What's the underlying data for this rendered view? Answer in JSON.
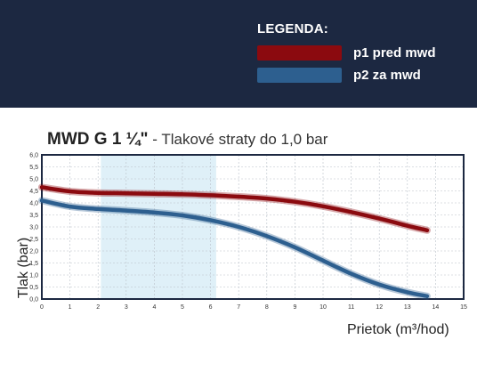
{
  "legend": {
    "title": "LEGENDA:",
    "items": [
      {
        "label": "p1 pred mwd",
        "color": "#8b0a0f"
      },
      {
        "label": "p2 za mwd",
        "color": "#2d5f8f"
      }
    ]
  },
  "header": {
    "title_strong": "MWD G 1 ¼\"",
    "title_rest": " - Tlakové straty do 1,0 bar"
  },
  "chart_data": {
    "type": "line",
    "xlabel": "Prietok (m³/hod)",
    "ylabel": "Tlak (bar)",
    "xlim": [
      0,
      15
    ],
    "ylim": [
      0,
      6
    ],
    "xticks": [
      "0",
      "1",
      "2",
      "3",
      "4",
      "5",
      "6",
      "7",
      "8",
      "9",
      "10",
      "11",
      "12",
      "13",
      "14",
      "15"
    ],
    "yticks": [
      "0,0",
      "0,5",
      "1,0",
      "1,5",
      "2,0",
      "2,5",
      "3,0",
      "3,5",
      "4,0",
      "4,5",
      "5,0",
      "5,5",
      "6,0"
    ],
    "grid": true,
    "highlight_band": [
      2.1,
      6.2
    ],
    "series": [
      {
        "name": "p1 pred mwd",
        "color": "#8b0a0f",
        "x": [
          0,
          1,
          2,
          3,
          4,
          5,
          6,
          7,
          8,
          9,
          10,
          11,
          12,
          13,
          13.7
        ],
        "y": [
          4.65,
          4.48,
          4.42,
          4.4,
          4.38,
          4.36,
          4.32,
          4.26,
          4.18,
          4.05,
          3.86,
          3.62,
          3.35,
          3.05,
          2.86
        ]
      },
      {
        "name": "p2 za mwd",
        "color": "#2d5f8f",
        "x": [
          0,
          1,
          2,
          3,
          4,
          5,
          6,
          7,
          8,
          9,
          10,
          11,
          12,
          13,
          13.7
        ],
        "y": [
          4.1,
          3.85,
          3.75,
          3.68,
          3.6,
          3.48,
          3.28,
          3.0,
          2.62,
          2.15,
          1.6,
          1.05,
          0.6,
          0.28,
          0.12
        ]
      }
    ]
  }
}
